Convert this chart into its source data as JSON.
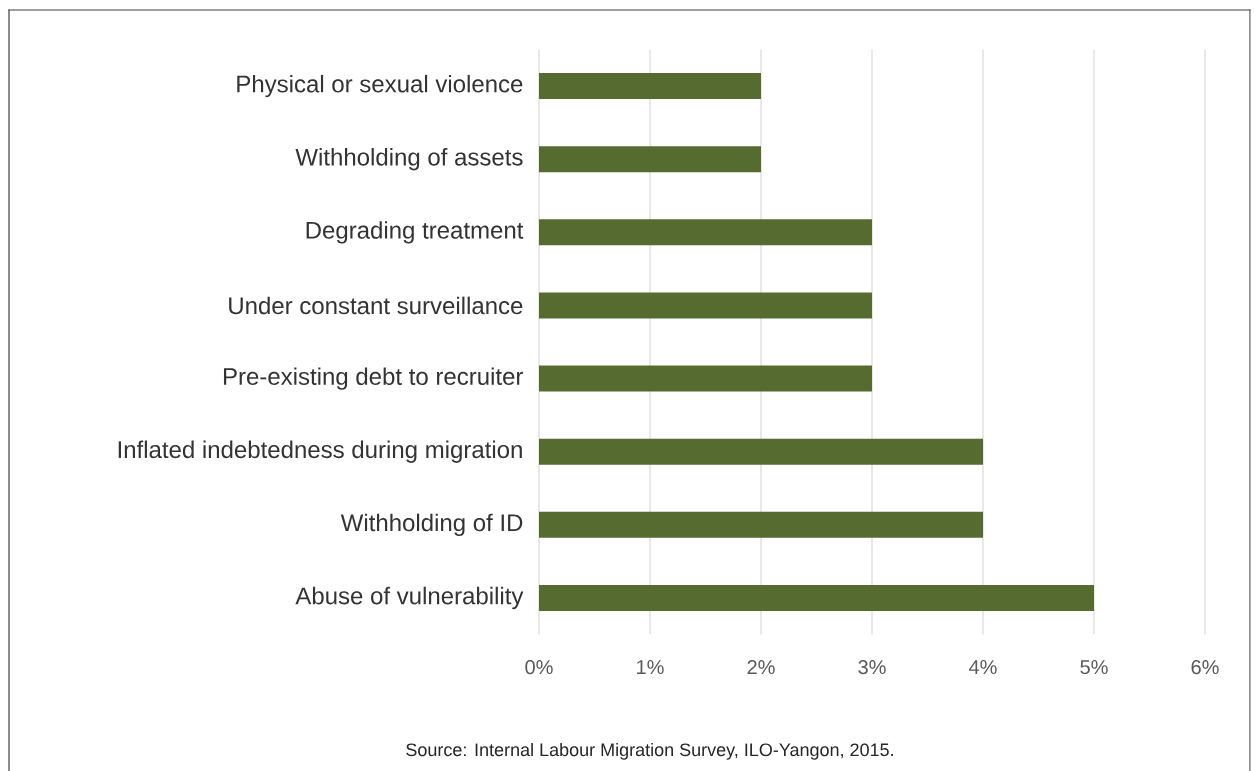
{
  "chart_data": {
    "type": "bar",
    "orientation": "horizontal",
    "categories": [
      "Physical or sexual violence",
      "Withholding of assets",
      "Degrading treatment",
      "Under constant surveillance",
      "Pre-existing debt to recruiter",
      "Inflated indebtedness during migration",
      "Withholding of ID",
      "Abuse of vulnerability"
    ],
    "values": [
      2,
      2,
      3,
      3,
      3,
      4,
      4,
      5
    ],
    "color": "#566b30",
    "xlim": [
      0,
      6
    ],
    "xticks": [
      {
        "value": 0,
        "label": "0%"
      },
      {
        "value": 1,
        "label": "1%"
      },
      {
        "value": 2,
        "label": "2%"
      },
      {
        "value": 3,
        "label": "3%"
      },
      {
        "value": 4,
        "label": "4%"
      },
      {
        "value": 5,
        "label": "5%"
      },
      {
        "value": 6,
        "label": "6%"
      }
    ],
    "grid": "x",
    "annotations": [
      "Source: Internal Labour Migration Survey, ILO-Yangon, 2015."
    ]
  }
}
